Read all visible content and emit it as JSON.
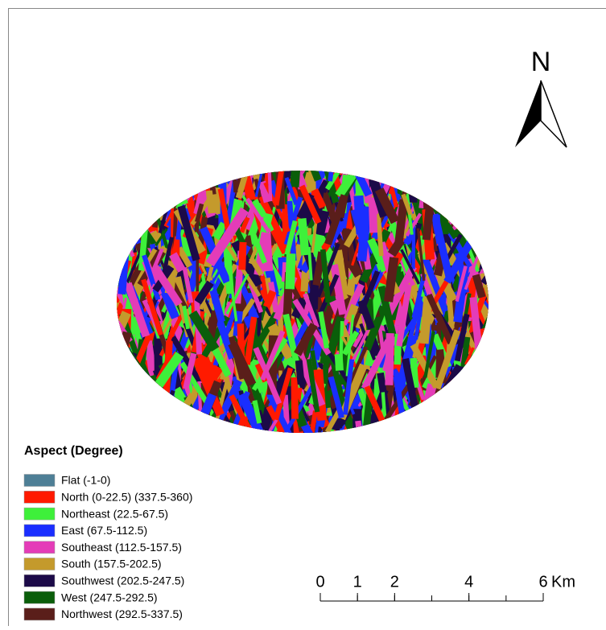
{
  "map": {
    "north_label": "N",
    "legend": {
      "title": "Aspect (Degree)",
      "items": [
        {
          "label": "Flat (-1-0)",
          "color": "#4e7f96"
        },
        {
          "label": "North (0-22.5) (337.5-360)",
          "color": "#ff1a00"
        },
        {
          "label": "Northeast (22.5-67.5)",
          "color": "#3ef03a"
        },
        {
          "label": "East (67.5-112.5)",
          "color": "#1a2eff"
        },
        {
          "label": "Southeast (112.5-157.5)",
          "color": "#e43cb8"
        },
        {
          "label": "South (157.5-202.5)",
          "color": "#c49a2c"
        },
        {
          "label": "Southwest (202.5-247.5)",
          "color": "#1c0a48"
        },
        {
          "label": "West (247.5-292.5)",
          "color": "#0a5e0a"
        },
        {
          "label": "Northwest (292.5-337.5)",
          "color": "#5a1e1a"
        }
      ]
    },
    "scale_bar": {
      "ticks": [
        0,
        1,
        2,
        4,
        6
      ],
      "unit": "Km"
    }
  }
}
